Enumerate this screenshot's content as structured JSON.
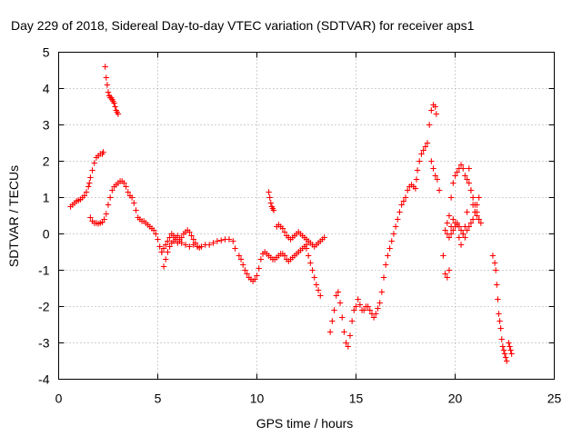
{
  "chart_data": {
    "type": "scatter",
    "title": "Day 229 of 2018, Sidereal Day-to-day VTEC variation (SDTVAR) for receiver aps1",
    "xlabel": "GPS time / hours",
    "ylabel": "SDTVAR / TECUs",
    "xlim": [
      0,
      25
    ],
    "ylim": [
      -4,
      5
    ],
    "xticks": [
      0,
      5,
      10,
      15,
      20,
      25
    ],
    "yticks": [
      -4,
      -3,
      -2,
      -1,
      0,
      1,
      2,
      3,
      4,
      5
    ],
    "grid": true,
    "marker": "plus",
    "color": "#ff0000",
    "series": [
      {
        "name": "aps1",
        "x": [
          0.6,
          0.7,
          0.8,
          0.9,
          1.0,
          1.1,
          1.2,
          1.3,
          1.4,
          1.5,
          1.55,
          1.6,
          1.7,
          1.8,
          1.9,
          2.0,
          2.1,
          2.2,
          2.25,
          1.6,
          1.7,
          1.8,
          1.9,
          2.0,
          2.1,
          2.2,
          2.3,
          2.4,
          2.5,
          2.6,
          2.7,
          2.8,
          2.9,
          3.0,
          3.1,
          3.2,
          3.3,
          3.4,
          3.5,
          3.6,
          3.7,
          3.8,
          3.9,
          4.0,
          4.1,
          4.2,
          4.3,
          4.4,
          4.5,
          4.6,
          4.7,
          4.8,
          4.9,
          5.0,
          5.1,
          5.2,
          2.35,
          2.4,
          2.45,
          2.5,
          2.55,
          2.6,
          2.65,
          2.7,
          2.75,
          2.8,
          2.85,
          2.9,
          2.95,
          3.0,
          5.2,
          5.3,
          5.4,
          5.5,
          5.6,
          5.7,
          5.8,
          5.9,
          6.0,
          6.1,
          6.2,
          6.3,
          6.4,
          6.5,
          6.6,
          6.7,
          6.8,
          6.9,
          7.0,
          7.1,
          7.2,
          7.4,
          7.6,
          7.8,
          8.0,
          8.2,
          8.4,
          8.6,
          8.8,
          8.9,
          5.3,
          5.4,
          5.5,
          5.6,
          5.7,
          5.8,
          5.9,
          6.0,
          6.1,
          6.2,
          6.4,
          6.6,
          6.8,
          7.0,
          9.1,
          9.2,
          9.3,
          9.4,
          9.5,
          9.6,
          9.7,
          9.8,
          9.9,
          10.0,
          10.1,
          10.2,
          10.3,
          10.4,
          10.5,
          10.6,
          10.7,
          10.8,
          10.9,
          11.0,
          11.1,
          11.2,
          11.3,
          11.4,
          11.5,
          11.6,
          11.7,
          11.8,
          11.9,
          12.0,
          12.1,
          12.2,
          12.3,
          12.4,
          12.5,
          10.6,
          10.65,
          10.7,
          10.75,
          10.8,
          10.85,
          11.0,
          11.1,
          11.2,
          11.3,
          11.4,
          11.5,
          11.6,
          11.7,
          11.8,
          11.9,
          12.0,
          12.1,
          12.2,
          12.3,
          12.4,
          12.5,
          12.6,
          12.7,
          12.8,
          12.9,
          13.0,
          13.1,
          13.2,
          13.3,
          13.4,
          12.5,
          12.6,
          12.7,
          12.8,
          12.9,
          13.0,
          13.1,
          13.2,
          13.7,
          13.8,
          13.9,
          14.0,
          14.1,
          14.2,
          14.3,
          14.4,
          14.5,
          14.6,
          14.7,
          14.8,
          14.9,
          15.0,
          15.1,
          15.2,
          15.3,
          15.4,
          15.5,
          15.6,
          15.7,
          15.8,
          15.9,
          16.0,
          16.1,
          16.2,
          16.3,
          16.4,
          16.5,
          16.6,
          16.7,
          16.8,
          16.9,
          17.0,
          17.1,
          17.2,
          17.3,
          17.4,
          17.5,
          17.6,
          17.7,
          17.8,
          17.9,
          18.0,
          18.05,
          18.1,
          18.2,
          18.3,
          18.4,
          18.5,
          18.6,
          18.7,
          18.8,
          18.9,
          19.0,
          19.05,
          18.8,
          18.9,
          19.0,
          19.1,
          19.2,
          19.4,
          19.5,
          19.6,
          19.7,
          19.8,
          19.9,
          20.0,
          20.1,
          20.2,
          20.3,
          20.4,
          20.5,
          20.6,
          20.7,
          20.8,
          20.9,
          21.0,
          21.1,
          21.2,
          21.3,
          19.5,
          19.6,
          19.7,
          19.8,
          19.9,
          20.0,
          20.1,
          20.2,
          20.3,
          20.4,
          20.5,
          20.6,
          20.7,
          20.8,
          20.9,
          21.0,
          21.1,
          21.2,
          19.6,
          19.7,
          19.8,
          19.9,
          20.0,
          20.1,
          20.2,
          20.3,
          20.4,
          20.5,
          20.6,
          20.7,
          20.8,
          20.9,
          21.0,
          21.1,
          21.2,
          21.9,
          22.0,
          22.05,
          22.1,
          22.15,
          22.2,
          22.25,
          22.3,
          22.35,
          22.4,
          22.45,
          22.5,
          22.55,
          22.6,
          22.7,
          22.75,
          22.8,
          22.85
        ],
        "y": [
          0.75,
          0.8,
          0.85,
          0.9,
          0.92,
          0.95,
          1.0,
          1.05,
          1.15,
          1.3,
          1.4,
          1.55,
          1.75,
          1.95,
          2.1,
          2.15,
          2.2,
          2.2,
          2.25,
          0.45,
          0.35,
          0.3,
          0.3,
          0.28,
          0.3,
          0.32,
          0.4,
          0.55,
          0.8,
          1.0,
          1.2,
          1.3,
          1.35,
          1.4,
          1.45,
          1.45,
          1.4,
          1.3,
          1.15,
          1.05,
          1.0,
          0.85,
          0.65,
          0.45,
          0.4,
          0.35,
          0.35,
          0.3,
          0.25,
          0.2,
          0.15,
          0.1,
          0.0,
          -0.15,
          -0.35,
          -0.5,
          4.6,
          4.3,
          4.1,
          3.9,
          3.8,
          3.75,
          3.75,
          3.7,
          3.65,
          3.6,
          3.5,
          3.4,
          3.35,
          3.3,
          -0.5,
          -0.4,
          -0.3,
          -0.2,
          -0.1,
          0.0,
          -0.05,
          -0.15,
          -0.25,
          -0.2,
          -0.1,
          0.0,
          0.05,
          0.1,
          0.05,
          -0.05,
          -0.15,
          -0.25,
          -0.35,
          -0.38,
          -0.35,
          -0.3,
          -0.3,
          -0.25,
          -0.2,
          -0.18,
          -0.15,
          -0.15,
          -0.2,
          -0.4,
          -0.9,
          -0.7,
          -0.5,
          -0.35,
          -0.25,
          -0.2,
          -0.1,
          -0.05,
          -0.15,
          -0.25,
          -0.3,
          -0.35,
          -0.3,
          -0.35,
          -0.6,
          -0.7,
          -0.85,
          -1.0,
          -1.1,
          -1.2,
          -1.25,
          -1.3,
          -1.25,
          -1.15,
          -0.95,
          -0.7,
          -0.55,
          -0.5,
          -0.55,
          -0.6,
          -0.65,
          -0.7,
          -0.7,
          -0.65,
          -0.6,
          -0.55,
          -0.55,
          -0.6,
          -0.7,
          -0.75,
          -0.7,
          -0.65,
          -0.6,
          -0.55,
          -0.5,
          -0.45,
          -0.4,
          -0.35,
          -0.3,
          1.15,
          1.0,
          0.85,
          0.75,
          0.7,
          0.65,
          0.2,
          0.25,
          0.2,
          0.15,
          0.05,
          -0.05,
          -0.1,
          -0.15,
          -0.1,
          -0.05,
          0.0,
          0.05,
          0.0,
          -0.05,
          -0.1,
          -0.15,
          -0.2,
          -0.25,
          -0.3,
          -0.35,
          -0.3,
          -0.25,
          -0.2,
          -0.15,
          -0.1,
          -0.4,
          -0.6,
          -0.8,
          -1.0,
          -1.2,
          -1.4,
          -1.55,
          -1.7,
          -2.7,
          -2.4,
          -2.1,
          -1.7,
          -1.6,
          -1.9,
          -2.3,
          -2.7,
          -3.0,
          -3.1,
          -2.8,
          -2.4,
          -2.1,
          -2.0,
          -1.8,
          -1.95,
          -2.1,
          -2.1,
          -2.0,
          -2.0,
          -2.1,
          -2.2,
          -2.3,
          -2.2,
          -2.05,
          -1.9,
          -1.6,
          -1.2,
          -0.85,
          -0.6,
          -0.4,
          -0.2,
          0.0,
          0.2,
          0.4,
          0.6,
          0.8,
          0.9,
          1.0,
          1.2,
          1.3,
          1.35,
          1.3,
          1.25,
          1.5,
          1.75,
          2.0,
          2.2,
          2.3,
          2.4,
          2.5,
          3.0,
          3.4,
          3.55,
          3.5,
          3.3,
          2.0,
          1.8,
          1.6,
          1.5,
          1.2,
          -0.6,
          -1.1,
          -1.2,
          -1.0,
          0.2,
          0.4,
          0.3,
          0.25,
          -0.1,
          -0.3,
          0.0,
          0.2,
          0.6,
          1.8,
          1.2,
          0.8,
          0.6,
          0.5,
          0.4,
          0.3,
          0.1,
          0.3,
          0.5,
          1.0,
          1.4,
          1.6,
          1.7,
          1.8,
          1.9,
          1.8,
          1.6,
          1.5,
          1.4,
          1.2,
          1.0,
          0.8,
          0.6,
          0.4,
          0.0,
          -0.1,
          0.0,
          0.1,
          0.2,
          0.3,
          0.2,
          0.1,
          0.0,
          -0.1,
          0.1,
          0.2,
          0.3,
          0.4,
          0.6,
          0.8,
          1.0,
          -0.6,
          -0.8,
          -1.0,
          -1.4,
          -1.8,
          -2.2,
          -2.4,
          -2.6,
          -2.9,
          -3.1,
          -3.2,
          -3.3,
          -3.4,
          -3.5,
          -3.0,
          -3.1,
          -3.2,
          -3.3
        ]
      }
    ]
  }
}
